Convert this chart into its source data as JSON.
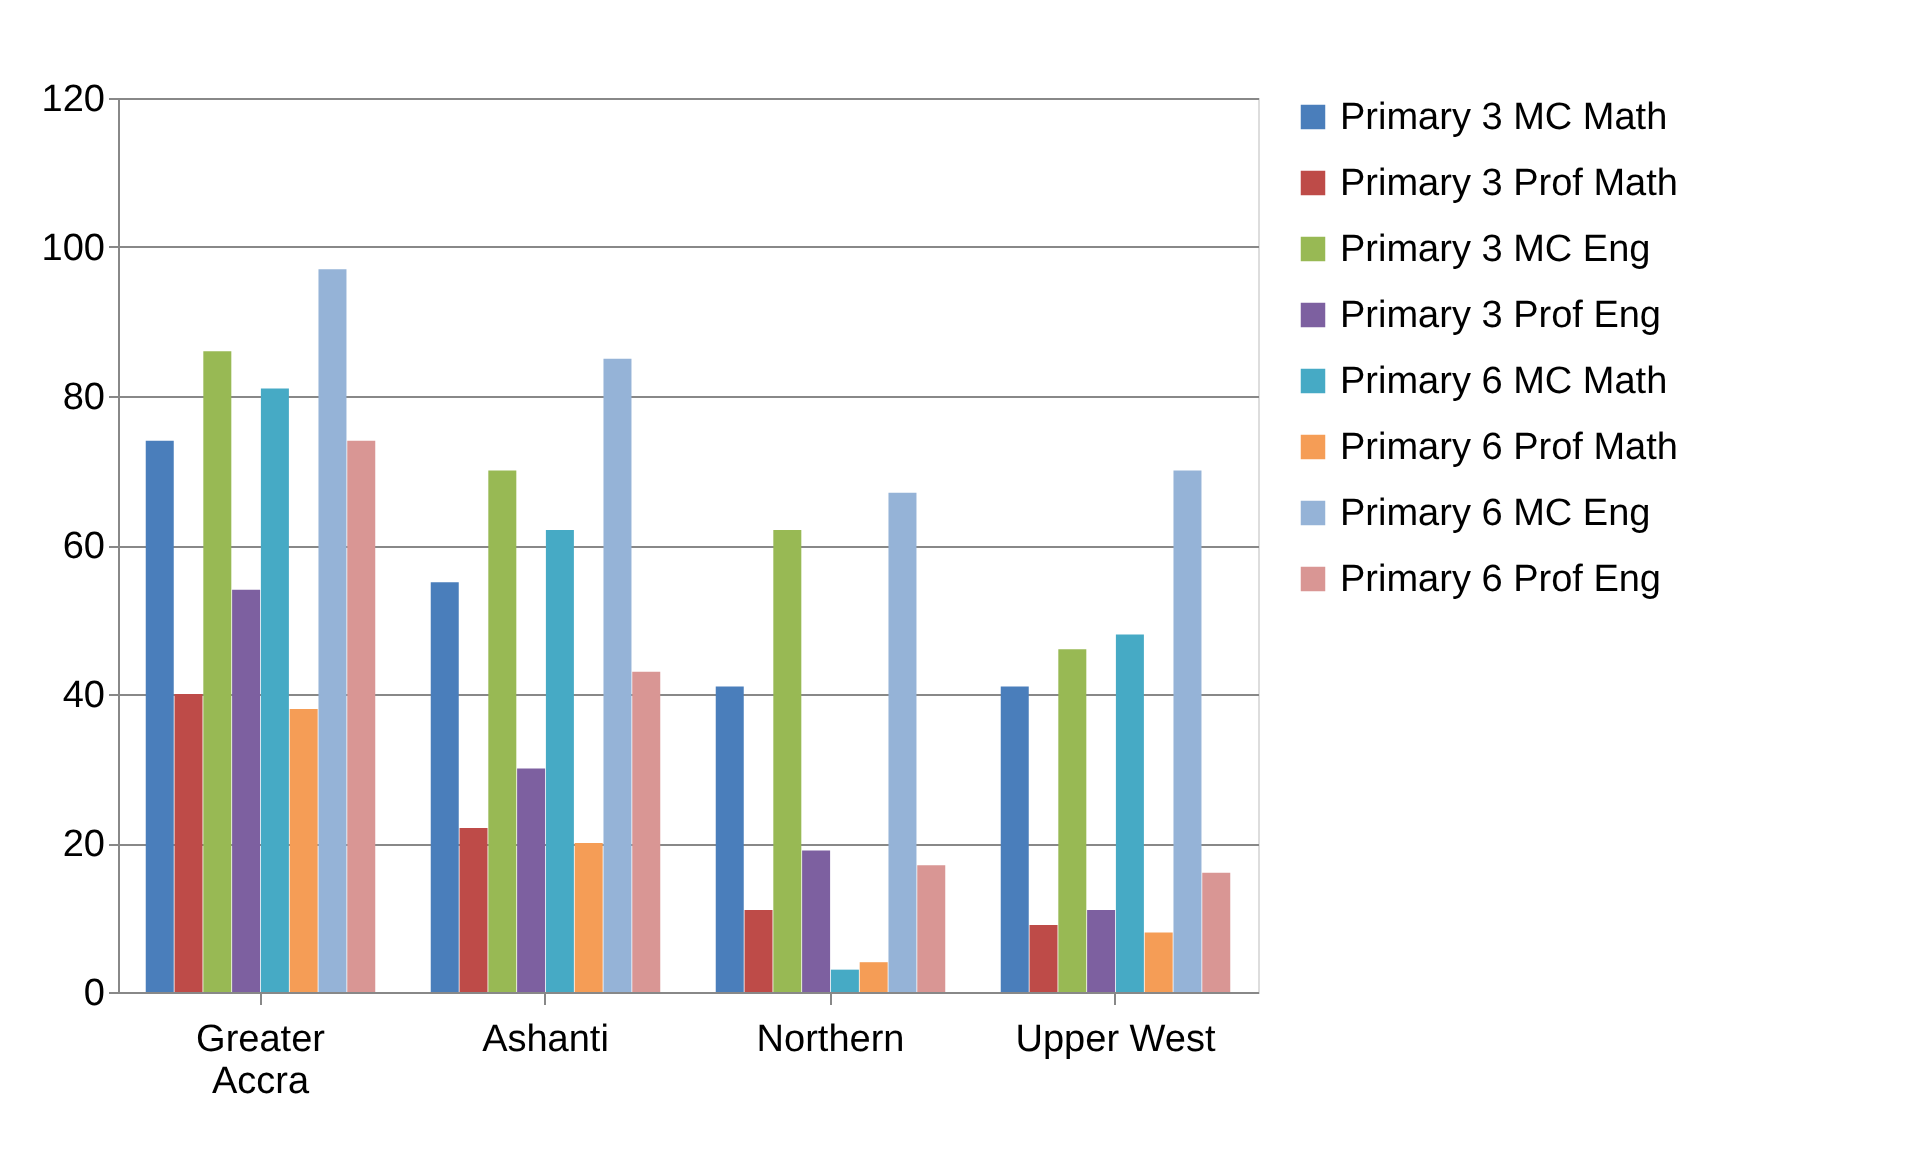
{
  "chart_data": {
    "type": "bar",
    "categories": [
      "Greater Accra",
      "Ashanti",
      "Northern",
      "Upper West"
    ],
    "series": [
      {
        "name": "Primary 3 MC Math",
        "color": "#4a7ebb",
        "values": [
          74,
          55,
          41,
          41
        ]
      },
      {
        "name": "Primary 3 Prof Math",
        "color": "#be4b48",
        "values": [
          40,
          22,
          11,
          9
        ]
      },
      {
        "name": "Primary 3 MC Eng",
        "color": "#98b954",
        "values": [
          86,
          70,
          62,
          46
        ]
      },
      {
        "name": "Primary 3 Prof Eng",
        "color": "#7d60a0",
        "values": [
          54,
          30,
          19,
          11
        ]
      },
      {
        "name": "Primary 6 MC Math",
        "color": "#46aac5",
        "values": [
          81,
          62,
          3,
          48
        ]
      },
      {
        "name": "Primary 6 Prof Math",
        "color": "#f59d56",
        "values": [
          38,
          20,
          4,
          8
        ]
      },
      {
        "name": "Primary 6 MC Eng",
        "color": "#95b3d7",
        "values": [
          97,
          85,
          67,
          70
        ]
      },
      {
        "name": "Primary 6 Prof Eng",
        "color": "#d99694",
        "values": [
          74,
          43,
          17,
          16
        ]
      }
    ],
    "ylim": [
      0,
      120
    ],
    "yticks": [
      0,
      20,
      40,
      60,
      80,
      100,
      120
    ],
    "grid": "y",
    "legend": "right"
  }
}
